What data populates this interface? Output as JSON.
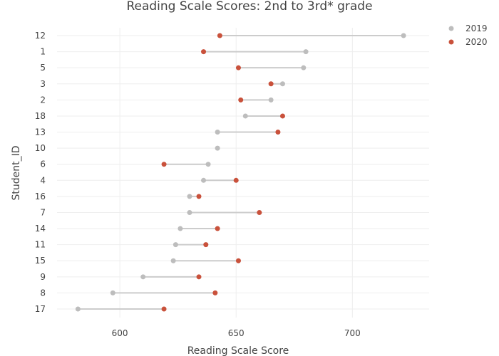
{
  "chart_data": {
    "type": "scatter",
    "subtype": "dumbbell",
    "title": "Reading Scale Scores: 2nd to 3rd* grade",
    "xlabel": "Reading Scale Score",
    "ylabel": "Student_ID",
    "xlim": [
      573,
      733
    ],
    "xticks": [
      600,
      650,
      700
    ],
    "grid": true,
    "legend_position": "top-right",
    "categories": [
      "12",
      "1",
      "5",
      "3",
      "2",
      "18",
      "13",
      "10",
      "6",
      "4",
      "16",
      "7",
      "14",
      "11",
      "15",
      "9",
      "8",
      "17"
    ],
    "series": [
      {
        "name": "2019",
        "color": "#bdbdbd",
        "values": [
          722,
          680,
          679,
          670,
          665,
          654,
          642,
          642,
          638,
          636,
          630,
          630,
          626,
          624,
          623,
          610,
          597,
          582
        ]
      },
      {
        "name": "2020",
        "color": "#c9513b",
        "values": [
          643,
          636,
          651,
          665,
          652,
          670,
          668,
          null,
          619,
          650,
          634,
          660,
          642,
          637,
          651,
          634,
          641,
          619
        ]
      }
    ],
    "connector_color": "#cccccc"
  }
}
